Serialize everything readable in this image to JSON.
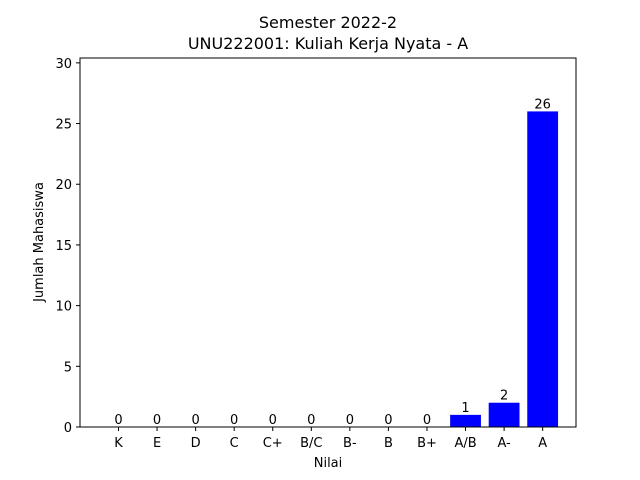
{
  "chart_data": {
    "type": "bar",
    "title": "Semester 2022-2",
    "subtitle": "UNU222001: Kuliah Kerja Nyata - A",
    "xlabel": "Nilai",
    "ylabel": "Jumlah Mahasiswa",
    "categories": [
      "K",
      "E",
      "D",
      "C",
      "C+",
      "B/C",
      "B-",
      "B",
      "B+",
      "A/B",
      "A-",
      "A"
    ],
    "values": [
      0,
      0,
      0,
      0,
      0,
      0,
      0,
      0,
      0,
      1,
      2,
      26
    ],
    "data_labels": [
      "0",
      "0",
      "0",
      "0",
      "0",
      "0",
      "0",
      "0",
      "0",
      "1",
      "2",
      "26"
    ],
    "ylim": [
      0,
      30.4
    ],
    "yticks": [
      0,
      5,
      10,
      15,
      20,
      25,
      30
    ],
    "ytick_labels": [
      "0",
      "5",
      "10",
      "15",
      "20",
      "25",
      "30"
    ],
    "bar_color": "#0000ff",
    "grid": false,
    "legend": "none"
  }
}
